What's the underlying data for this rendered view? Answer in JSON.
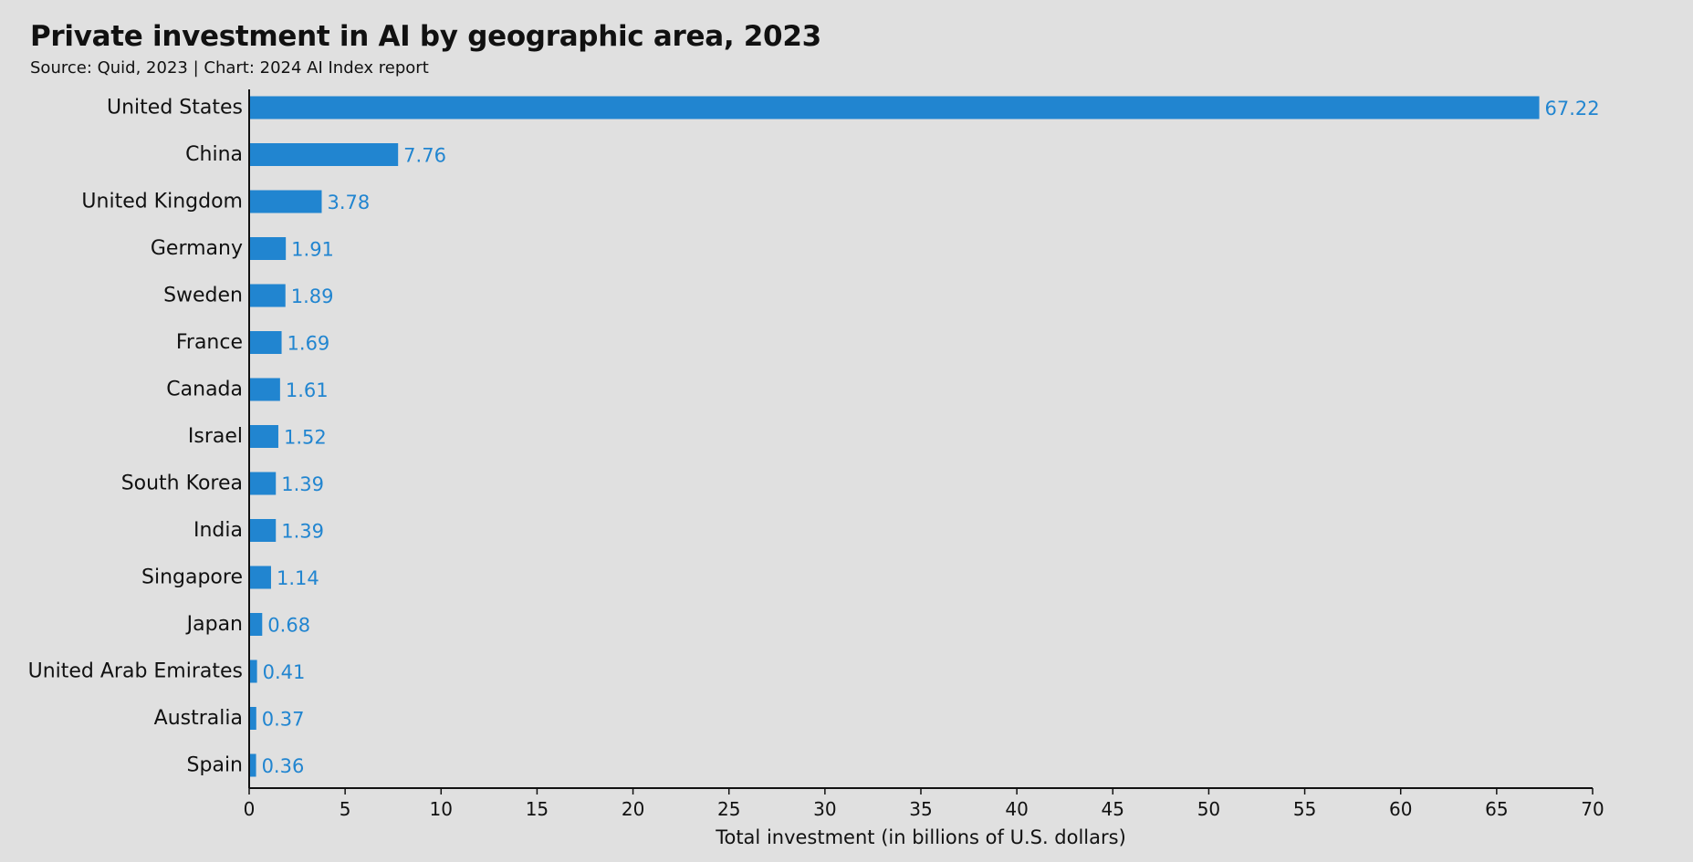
{
  "chart_data": {
    "type": "bar",
    "orientation": "horizontal",
    "title": "Private investment in AI by geographic area, 2023",
    "subtitle": "Source: Quid, 2023 | Chart: 2024 AI Index report",
    "xlabel": "Total investment (in billions of U.S. dollars)",
    "ylabel": "",
    "categories": [
      "United States",
      "China",
      "United Kingdom",
      "Germany",
      "Sweden",
      "France",
      "Canada",
      "Israel",
      "South Korea",
      "India",
      "Singapore",
      "Japan",
      "United Arab Emirates",
      "Australia",
      "Spain"
    ],
    "values": [
      67.22,
      7.76,
      3.78,
      1.91,
      1.89,
      1.69,
      1.61,
      1.52,
      1.39,
      1.39,
      1.14,
      0.68,
      0.41,
      0.37,
      0.36
    ],
    "value_labels": [
      "67.22",
      "7.76",
      "3.78",
      "1.91",
      "1.89",
      "1.69",
      "1.61",
      "1.52",
      "1.39",
      "1.39",
      "1.14",
      "0.68",
      "0.41",
      "0.37",
      "0.36"
    ],
    "xlim": [
      0,
      70
    ],
    "xticks": [
      0,
      5,
      10,
      15,
      20,
      25,
      30,
      35,
      40,
      45,
      50,
      55,
      60,
      65,
      70
    ],
    "grid": false,
    "legend": "none",
    "colors": {
      "bar": "#2185d0",
      "value_label": "#2185d0",
      "axis": "#111111",
      "background": "#e0e0e0"
    }
  }
}
